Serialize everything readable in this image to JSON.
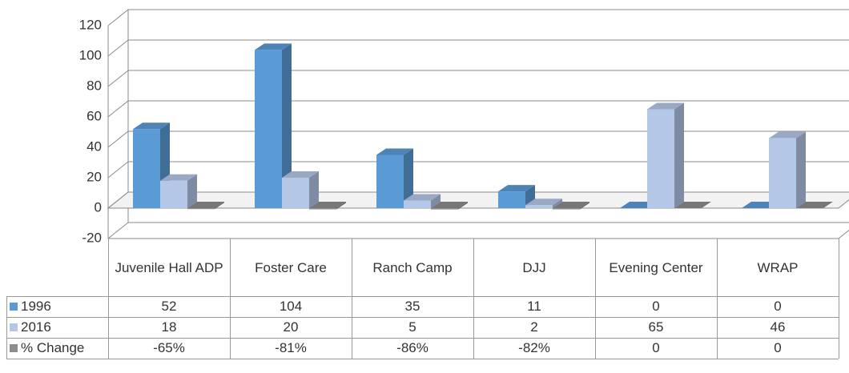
{
  "chart_data": {
    "type": "bar3d",
    "categories": [
      "Juvenile Hall ADP",
      "Foster Care",
      "Ranch Camp",
      "DJJ",
      "Evening Center",
      "WRAP"
    ],
    "series": [
      {
        "name": "1996",
        "color": "#5b9bd5",
        "values": [
          52,
          104,
          35,
          11,
          0,
          0
        ]
      },
      {
        "name": "2016",
        "color": "#b4c7e7",
        "values": [
          18,
          20,
          5,
          2,
          65,
          46
        ]
      },
      {
        "name": "% Change",
        "color": "#8c8c8c",
        "values": [
          -0.65,
          -0.81,
          -0.86,
          -0.82,
          0,
          0
        ],
        "value_labels": [
          "-65%",
          "-81%",
          "-86%",
          "-82%",
          "0",
          "0"
        ]
      }
    ],
    "ylim": [
      -20,
      120
    ],
    "yticks": [
      -20,
      0,
      20,
      40,
      60,
      80,
      100,
      120
    ],
    "grid": true
  }
}
